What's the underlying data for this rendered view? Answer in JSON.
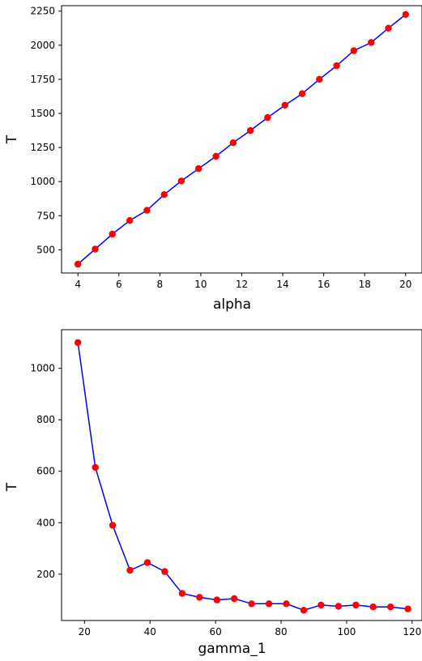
{
  "chart_data": [
    {
      "type": "line",
      "xlabel": "alpha",
      "ylabel": "T",
      "xlim": [
        3.2,
        20.8
      ],
      "ylim": [
        330,
        2290
      ],
      "xticks": [
        4,
        6,
        8,
        10,
        12,
        14,
        16,
        18,
        20
      ],
      "yticks": [
        500,
        750,
        1000,
        1250,
        1500,
        1750,
        2000,
        2250
      ],
      "line_color": "#0000ff",
      "marker_color": "#ff0000",
      "series": [
        {
          "x": [
            4.0,
            4.84,
            5.68,
            6.53,
            7.37,
            8.21,
            9.05,
            9.89,
            10.74,
            11.58,
            12.42,
            13.26,
            14.11,
            14.95,
            15.79,
            16.63,
            17.47,
            18.32,
            19.16,
            20.0
          ],
          "y": [
            395,
            505,
            615,
            715,
            790,
            905,
            1005,
            1095,
            1185,
            1285,
            1375,
            1470,
            1560,
            1645,
            1750,
            1850,
            1960,
            2020,
            2125,
            2225
          ]
        }
      ]
    },
    {
      "type": "line",
      "xlabel": "gamma_1",
      "ylabel": "T",
      "xlim": [
        13,
        123
      ],
      "ylim": [
        20,
        1150
      ],
      "xticks": [
        20,
        40,
        60,
        80,
        100,
        120
      ],
      "yticks": [
        200,
        400,
        600,
        800,
        1000
      ],
      "line_color": "#0000ff",
      "marker_color": "#ff0000",
      "series": [
        {
          "x": [
            18,
            23.3,
            28.6,
            33.9,
            39.2,
            44.5,
            49.8,
            55.1,
            60.4,
            65.7,
            71.0,
            76.3,
            81.6,
            86.9,
            92.2,
            97.5,
            102.8,
            108.1,
            113.4,
            118.7
          ],
          "y": [
            1100,
            615,
            390,
            215,
            245,
            210,
            125,
            110,
            100,
            105,
            85,
            85,
            85,
            60,
            80,
            75,
            80,
            73,
            73,
            65
          ]
        }
      ]
    }
  ]
}
